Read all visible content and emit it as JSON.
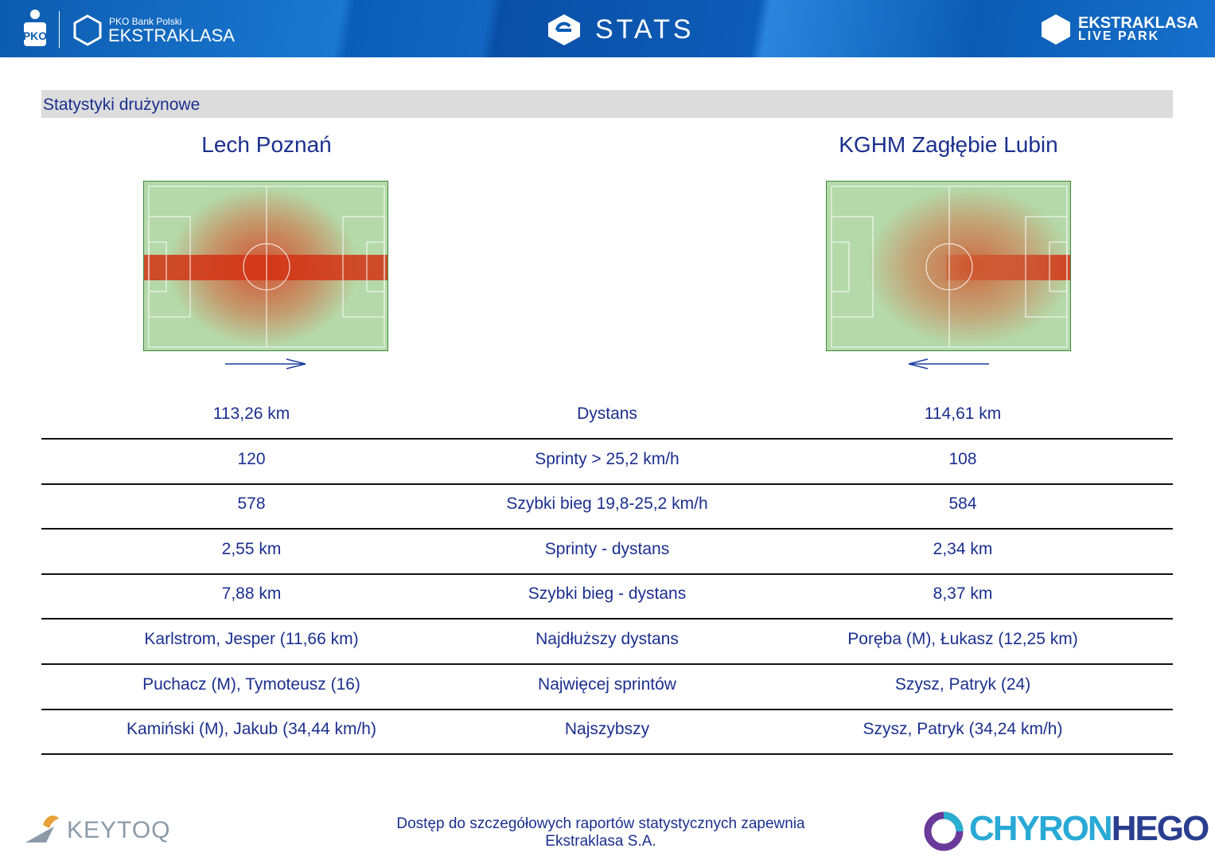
{
  "header": {
    "bank_small": "PKO Bank Polski",
    "bank_league": "EKSTRAKLASA",
    "title": "STATS",
    "right_top": "EKSTRAKLASA",
    "right_bottom": "LIVE PARK"
  },
  "section_title": "Statystyki drużynowe",
  "teams": [
    "Lech Poznań",
    "KGHM Zagłębie Lubin"
  ],
  "table": {
    "rows": [
      [
        "113,26 km",
        "Dystans",
        "114,61 km"
      ],
      [
        "120",
        "Sprinty > 25,2 km/h",
        "108"
      ],
      [
        "578",
        "Szybki bieg 19,8-25,2 km/h",
        "584"
      ],
      [
        "2,55 km",
        "Sprinty - dystans",
        "2,34 km"
      ],
      [
        "7,88 km",
        "Szybki bieg - dystans",
        "8,37 km"
      ],
      [
        "Karlstrom, Jesper (11,66 km)",
        "Najdłuższy dystans",
        "Poręba (M), Łukasz (12,25 km)"
      ],
      [
        "Puchacz (M), Tymoteusz (16)",
        "Najwięcej sprintów",
        "Szysz, Patryk (24)"
      ],
      [
        "Kamiński (M), Jakub (34,44 km/h)",
        "Najszybszy",
        "Szysz, Patryk (34,24 km/h)"
      ]
    ]
  },
  "footer": {
    "note": "Dostęp do szczegółowych raportów statystycznych zapewnia Ekstraklasa S.A.",
    "left_logo": "KEYTOQ",
    "right_logo_a": "CHYRON",
    "right_logo_b": "HEGO"
  }
}
